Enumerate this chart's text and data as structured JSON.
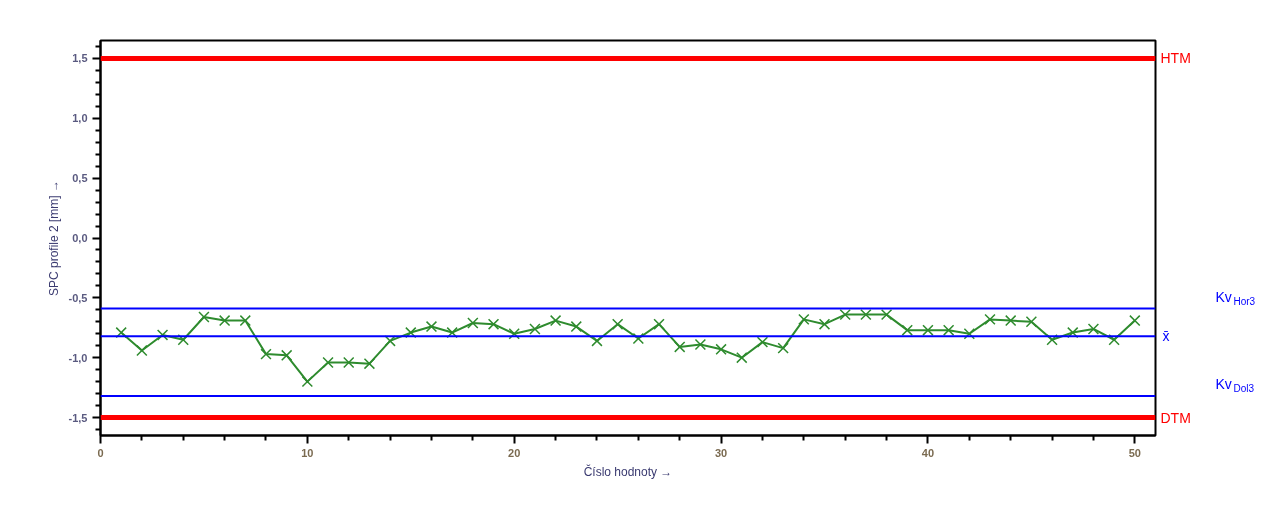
{
  "chart_data": {
    "type": "line",
    "xlabel": "Číslo hodnoty →",
    "ylabel": "SPC profile 2 [mm] →",
    "x": [
      1,
      2,
      3,
      4,
      5,
      6,
      7,
      8,
      9,
      10,
      11,
      12,
      13,
      14,
      15,
      16,
      17,
      18,
      19,
      20,
      21,
      22,
      23,
      24,
      25,
      26,
      27,
      28,
      29,
      30,
      31,
      32,
      33,
      34,
      35,
      36,
      37,
      38,
      39,
      40,
      41,
      42,
      43,
      44,
      45,
      46,
      47,
      48,
      49,
      50
    ],
    "series": [
      {
        "color": "#2e8b2e",
        "values": [
          -0.79,
          -0.94,
          -0.81,
          -0.85,
          -0.66,
          -0.69,
          -0.69,
          -0.97,
          -0.98,
          -1.2,
          -1.04,
          -1.04,
          -1.05,
          -0.86,
          -0.79,
          -0.74,
          -0.79,
          -0.71,
          -0.72,
          -0.8,
          -0.76,
          -0.69,
          -0.74,
          -0.86,
          -0.72,
          -0.84,
          -0.72,
          -0.91,
          -0.89,
          -0.93,
          -1.0,
          -0.87,
          -0.92,
          -0.68,
          -0.72,
          -0.64,
          -0.64,
          -0.64,
          -0.77,
          -0.77,
          -0.77,
          -0.8,
          -0.68,
          -0.69,
          -0.7,
          -0.85,
          -0.79,
          -0.76,
          -0.85,
          -0.69
        ]
      }
    ],
    "marker": "cross",
    "line_style": "solid",
    "grid": false,
    "xlim": [
      0,
      51
    ],
    "ylim": [
      -1.65,
      1.65
    ],
    "xticks": [
      0,
      {
        "value": 2,
        "label": null
      },
      {
        "value": 4,
        "label": null
      },
      {
        "value": 6,
        "label": null
      },
      {
        "value": 8,
        "label": null
      },
      10,
      {
        "value": 12,
        "label": null
      },
      {
        "value": 14,
        "label": null
      },
      {
        "value": 16,
        "label": null
      },
      {
        "value": 18,
        "label": null
      },
      20,
      {
        "value": 22,
        "label": null
      },
      {
        "value": 24,
        "label": null
      },
      {
        "value": 26,
        "label": null
      },
      {
        "value": 28,
        "label": null
      },
      30,
      {
        "value": 32,
        "label": null
      },
      {
        "value": 34,
        "label": null
      },
      {
        "value": 36,
        "label": null
      },
      {
        "value": 38,
        "label": null
      },
      40,
      {
        "value": 42,
        "label": null
      },
      {
        "value": 44,
        "label": null
      },
      {
        "value": 46,
        "label": null
      },
      {
        "value": 48,
        "label": null
      },
      50
    ],
    "yticks": [
      {
        "value": -1.6,
        "label": null
      },
      {
        "value": -1.5,
        "label": "-1,5"
      },
      {
        "value": -1.4,
        "label": null
      },
      {
        "value": -1.3,
        "label": null
      },
      {
        "value": -1.2,
        "label": null
      },
      {
        "value": -1.1,
        "label": null
      },
      {
        "value": -1.0,
        "label": "-1,0"
      },
      {
        "value": -0.9,
        "label": null
      },
      {
        "value": -0.8,
        "label": null
      },
      {
        "value": -0.7,
        "label": null
      },
      {
        "value": -0.6,
        "label": null
      },
      {
        "value": -0.5,
        "label": "-0,5"
      },
      {
        "value": -0.4,
        "label": null
      },
      {
        "value": -0.3,
        "label": null
      },
      {
        "value": -0.2,
        "label": null
      },
      {
        "value": -0.1,
        "label": null
      },
      {
        "value": 0,
        "label": "0,0"
      },
      {
        "value": 0.1,
        "label": null
      },
      {
        "value": 0.2,
        "label": null
      },
      {
        "value": 0.3,
        "label": null
      },
      {
        "value": 0.4,
        "label": null
      },
      {
        "value": 0.5,
        "label": "0,5"
      },
      {
        "value": 0.6,
        "label": null
      },
      {
        "value": 0.7,
        "label": null
      },
      {
        "value": 0.8,
        "label": null
      },
      {
        "value": 0.9,
        "label": null
      },
      {
        "value": 1.0,
        "label": "1,0"
      },
      {
        "value": 1.1,
        "label": null
      },
      {
        "value": 1.2,
        "label": null
      },
      {
        "value": 1.3,
        "label": null
      },
      {
        "value": 1.4,
        "label": null
      },
      {
        "value": 1.5,
        "label": "1,5"
      },
      {
        "value": 1.6,
        "label": null
      }
    ],
    "ref_lines": [
      {
        "axis": "y",
        "value": 1.5,
        "label": "HTM",
        "color": "#ff0000"
      },
      {
        "axis": "y",
        "value": -1.5,
        "label": "DTM",
        "color": "#ff0000"
      },
      {
        "axis": "y",
        "value": -0.59,
        "label": "Kv$_{Hor3}$",
        "color": "#0000ff"
      },
      {
        "axis": "y",
        "value": -0.82,
        "label": "x̄",
        "color": "#0000ff"
      },
      {
        "axis": "y",
        "value": -1.32,
        "label": "Kv$_{Dol3}$",
        "color": "#0000ff"
      }
    ]
  }
}
